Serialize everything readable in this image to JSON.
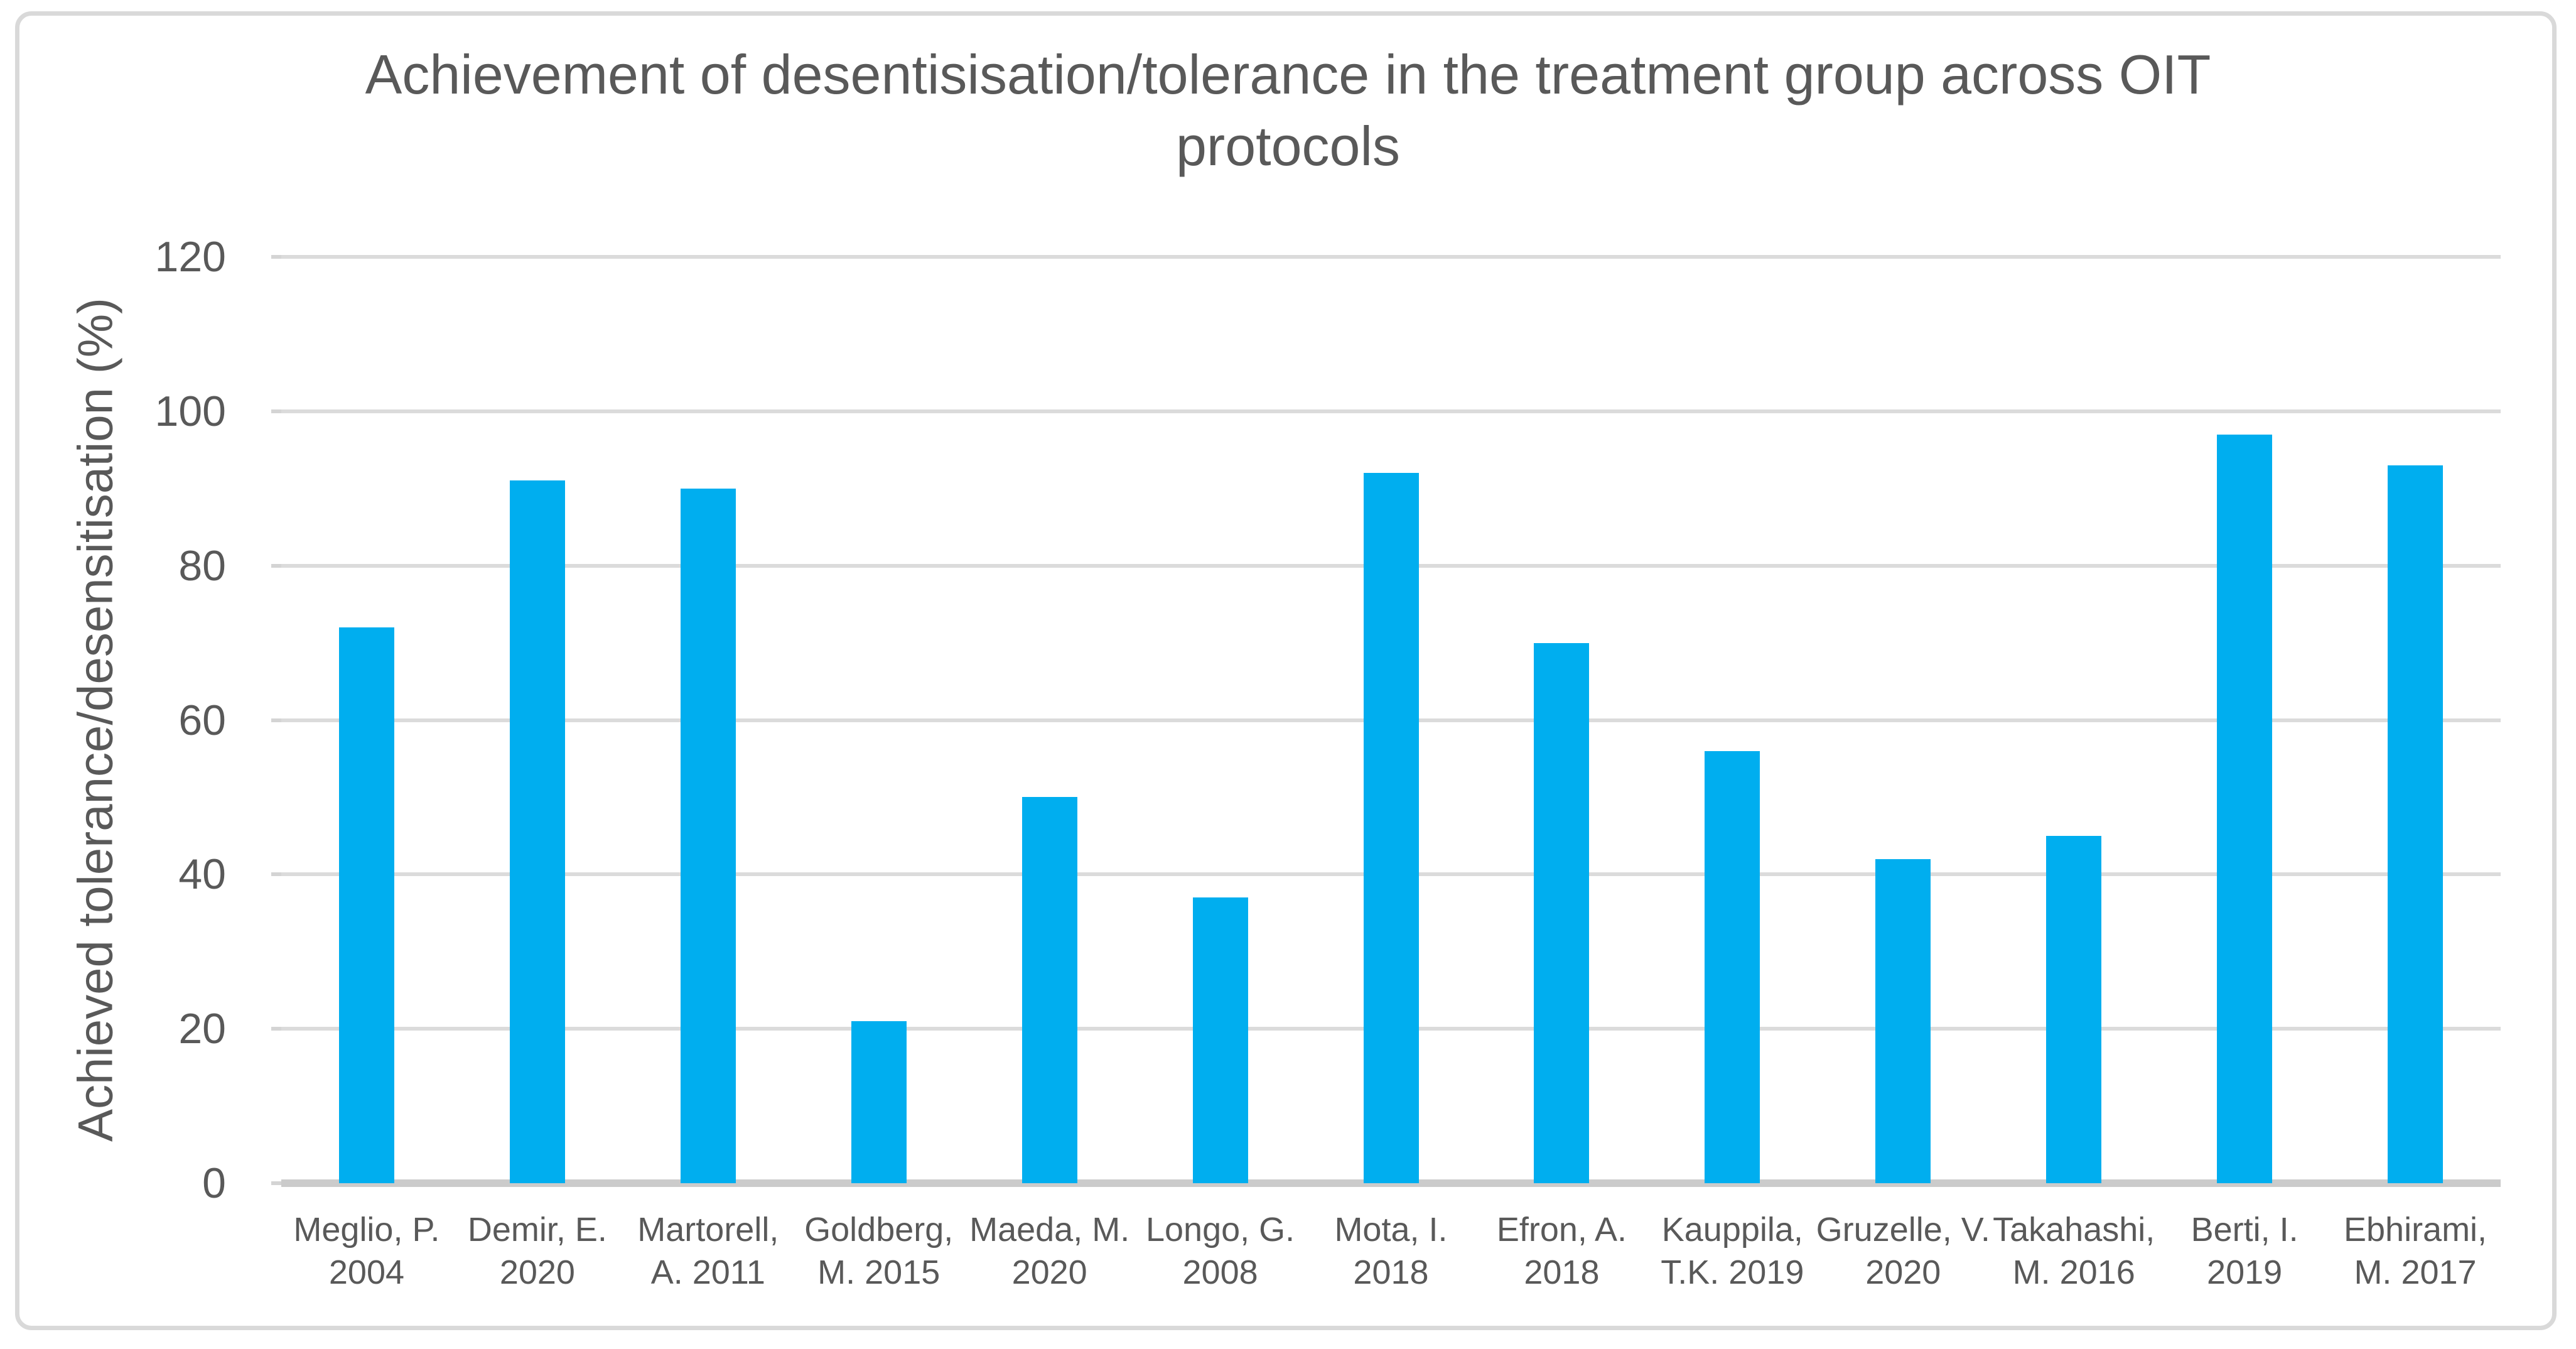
{
  "chart_data": {
    "type": "bar",
    "title": "Achievement of desentisisation/tolerance in the treatment group across OIT protocols",
    "xlabel": "",
    "ylabel": "Achieved tolerance/desensitisation (%)",
    "ylim": [
      0,
      120
    ],
    "yticks": [
      0,
      20,
      40,
      60,
      80,
      100,
      120
    ],
    "grid": true,
    "legend": false,
    "categories": [
      "Meglio, P.\n2004",
      "Demir, E.\n2020",
      "Martorell,\nA. 2011",
      "Goldberg,\nM. 2015",
      "Maeda, M.\n2020",
      "Longo, G.\n2008",
      "Mota, I.\n2018",
      "Efron, A.\n2018",
      "Kauppila,\nT.K. 2019",
      "Gruzelle, V.\n2020",
      "Takahashi,\nM. 2016",
      "Berti, I.\n2019",
      "Ebhirami,\nM. 2017"
    ],
    "values": [
      72,
      91,
      90,
      21,
      50,
      37,
      92,
      70,
      56,
      42,
      45,
      97,
      93
    ]
  },
  "colors": {
    "bar": "#00AEEF",
    "gridline": "#DBDBDB",
    "axis_line": "#CBCBCB",
    "text": "#595959",
    "frame_border": "#D9D9D9",
    "background": "#FFFFFF"
  }
}
